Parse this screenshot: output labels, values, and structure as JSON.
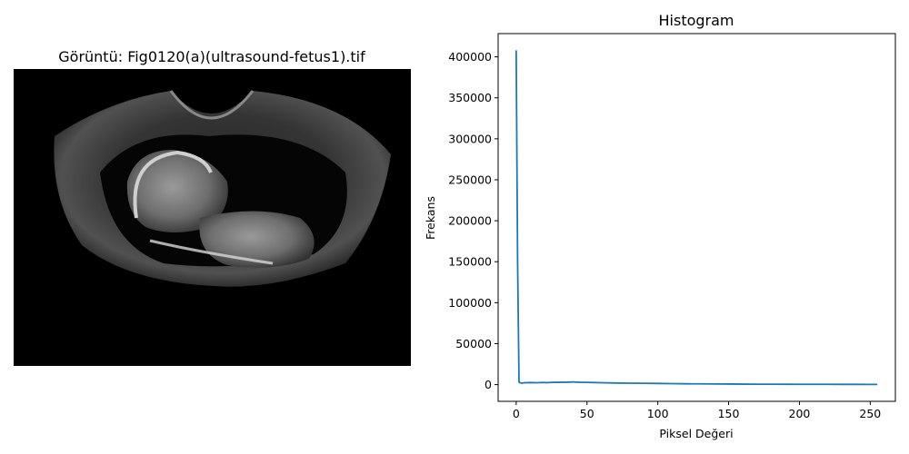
{
  "image_panel": {
    "title": "Görüntü: Fig0120(a)(ultrasound-fetus1).tif"
  },
  "chart_data": {
    "type": "line",
    "title": "Histogram",
    "xlabel": "Piksel Değeri",
    "ylabel": "Frekans",
    "xlim": [
      -12.75,
      267.75
    ],
    "ylim": [
      -20400,
      428400
    ],
    "xticks": [
      0,
      50,
      100,
      150,
      200,
      250
    ],
    "yticks": [
      0,
      50000,
      100000,
      150000,
      200000,
      250000,
      300000,
      350000,
      400000
    ],
    "grid": false,
    "series": [
      {
        "color": "#1f77b4",
        "x": [
          0,
          1,
          2,
          3,
          4,
          5,
          6,
          8,
          10,
          12,
          15,
          18,
          20,
          22,
          25,
          28,
          30,
          33,
          35,
          38,
          40,
          42,
          45,
          50,
          55,
          60,
          70,
          80,
          90,
          100,
          110,
          120,
          130,
          140,
          150,
          160,
          170,
          180,
          190,
          200,
          210,
          220,
          230,
          240,
          250,
          255
        ],
        "y": [
          408000,
          150000,
          3000,
          2200,
          1800,
          2000,
          2300,
          2400,
          2500,
          2400,
          2300,
          2600,
          2500,
          2400,
          2700,
          2900,
          2800,
          3000,
          2900,
          3100,
          3300,
          3000,
          2900,
          2700,
          2500,
          2300,
          2000,
          1800,
          1600,
          1400,
          1200,
          1000,
          900,
          800,
          700,
          600,
          550,
          500,
          450,
          400,
          380,
          350,
          330,
          300,
          280,
          250
        ]
      }
    ]
  }
}
